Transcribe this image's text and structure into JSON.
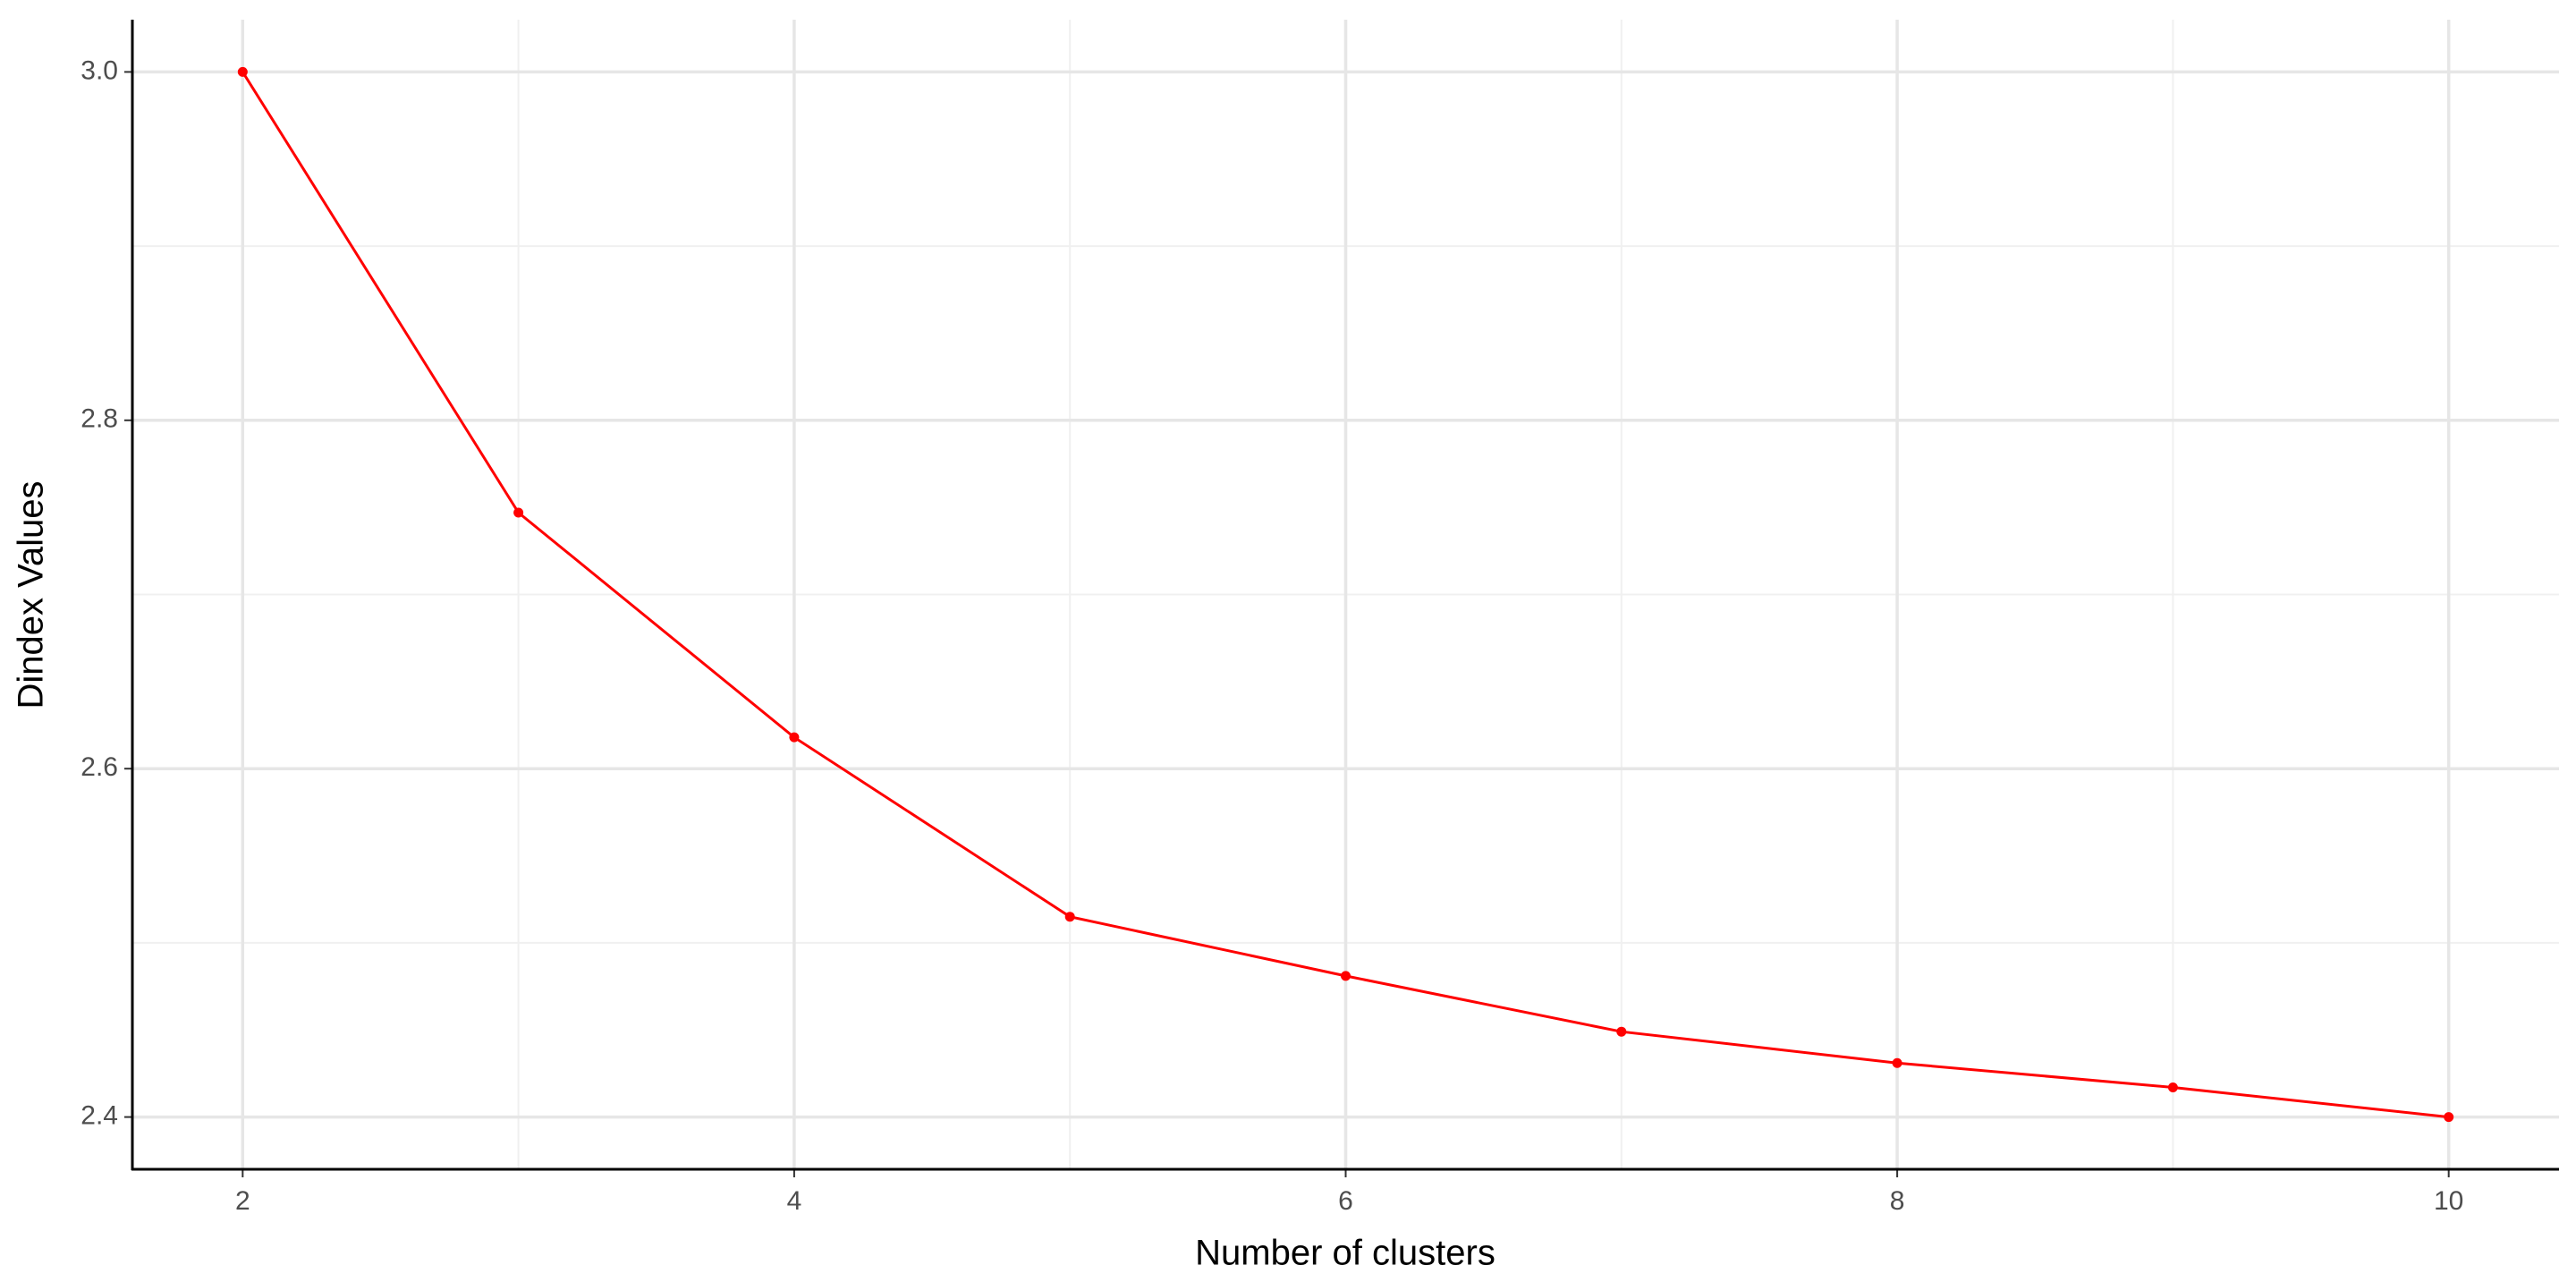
{
  "chart_data": {
    "type": "line",
    "x_label": "Number of clusters",
    "y_label": "Dindex Values",
    "x": [
      2,
      3,
      4,
      5,
      6,
      7,
      8,
      9,
      10
    ],
    "series": [
      {
        "name": "Dindex",
        "color": "#ff0000",
        "values": [
          3.0,
          2.747,
          2.618,
          2.515,
          2.481,
          2.449,
          2.431,
          2.417,
          2.4
        ]
      }
    ],
    "xlim": [
      1.6,
      10.4
    ],
    "xticks": [
      2,
      4,
      6,
      8,
      10
    ],
    "minor_xticks": [
      3,
      5,
      7,
      9
    ],
    "ylim": [
      2.37,
      3.03
    ],
    "yticks": [
      {
        "value": 2.4,
        "label": "2.4"
      },
      {
        "value": 2.6,
        "label": "2.6"
      },
      {
        "value": 2.8,
        "label": "2.8"
      },
      {
        "value": 3.0,
        "label": "3.0"
      }
    ],
    "minor_yticks": [
      2.5,
      2.7,
      2.9
    ],
    "grid": true
  }
}
